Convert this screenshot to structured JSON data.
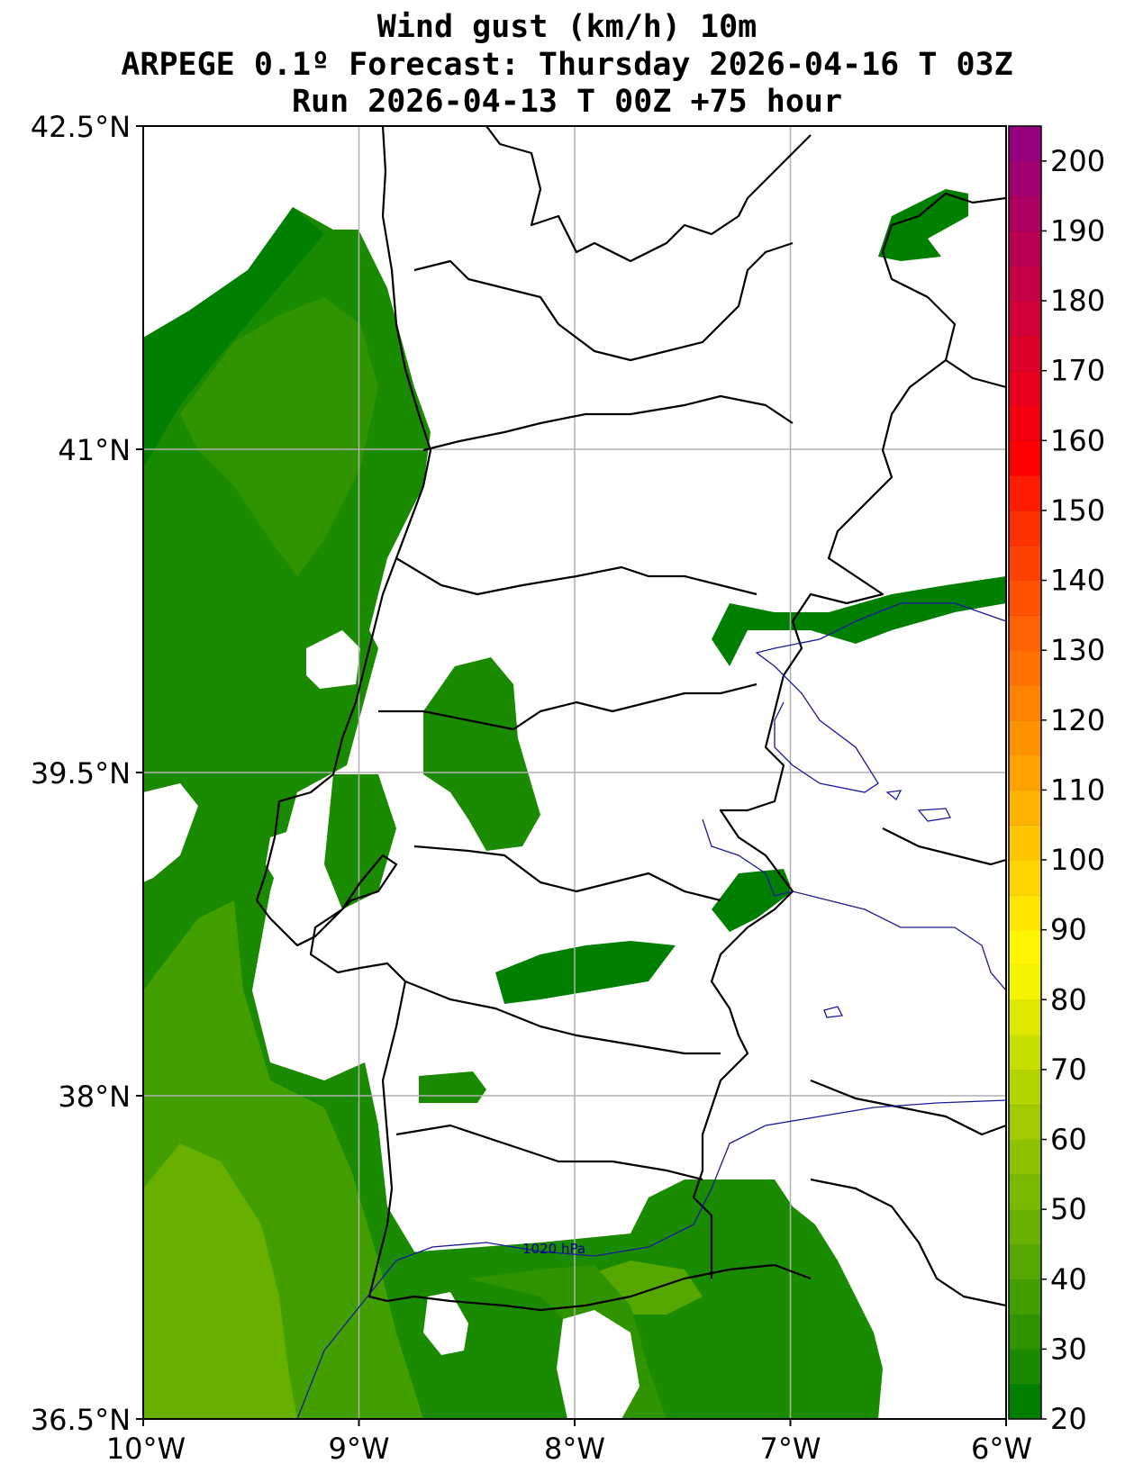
{
  "title": {
    "line1": "Wind gust (km/h) 10m",
    "line2": "ARPEGE 0.1º Forecast: Thursday 2026-04-16 T 03Z",
    "line3": "Run 2026-04-13 T 00Z +75 hour"
  },
  "map": {
    "region": "Portugal",
    "lon_range": [
      -10,
      -6
    ],
    "lat_range": [
      36.5,
      42.5
    ],
    "lon_ticks": [
      "10°W",
      "9°W",
      "8°W",
      "7°W",
      "6°W"
    ],
    "lat_ticks": [
      "42.5°N",
      "41°N",
      "39.5°N",
      "38°N",
      "36.5°N"
    ],
    "grid": true,
    "isobar_label": "1020 hPa"
  },
  "colorbar": {
    "ticks": [
      "20",
      "30",
      "40",
      "50",
      "60",
      "70",
      "80",
      "90",
      "100",
      "110",
      "120",
      "130",
      "140",
      "150",
      "160",
      "170",
      "180",
      "190",
      "200"
    ],
    "range": [
      20,
      205
    ],
    "step": 5,
    "colors": [
      "#007f00",
      "#1a8a00",
      "#2f9400",
      "#439e00",
      "#56a700",
      "#68b000",
      "#7ab900",
      "#8cc200",
      "#a0cb00",
      "#b4d400",
      "#c8dd00",
      "#dfe800",
      "#f5f300",
      "#fff500",
      "#ffe500",
      "#ffd500",
      "#ffc400",
      "#ffb300",
      "#ffa200",
      "#ff9200",
      "#ff8200",
      "#ff7200",
      "#ff6200",
      "#ff5200",
      "#ff4200",
      "#ff3000",
      "#ff1c00",
      "#ff0000",
      "#f4000e",
      "#e8001c",
      "#dc002a",
      "#d10038",
      "#c50046",
      "#ba0054",
      "#ae0062",
      "#a20070",
      "#96007e"
    ]
  }
}
